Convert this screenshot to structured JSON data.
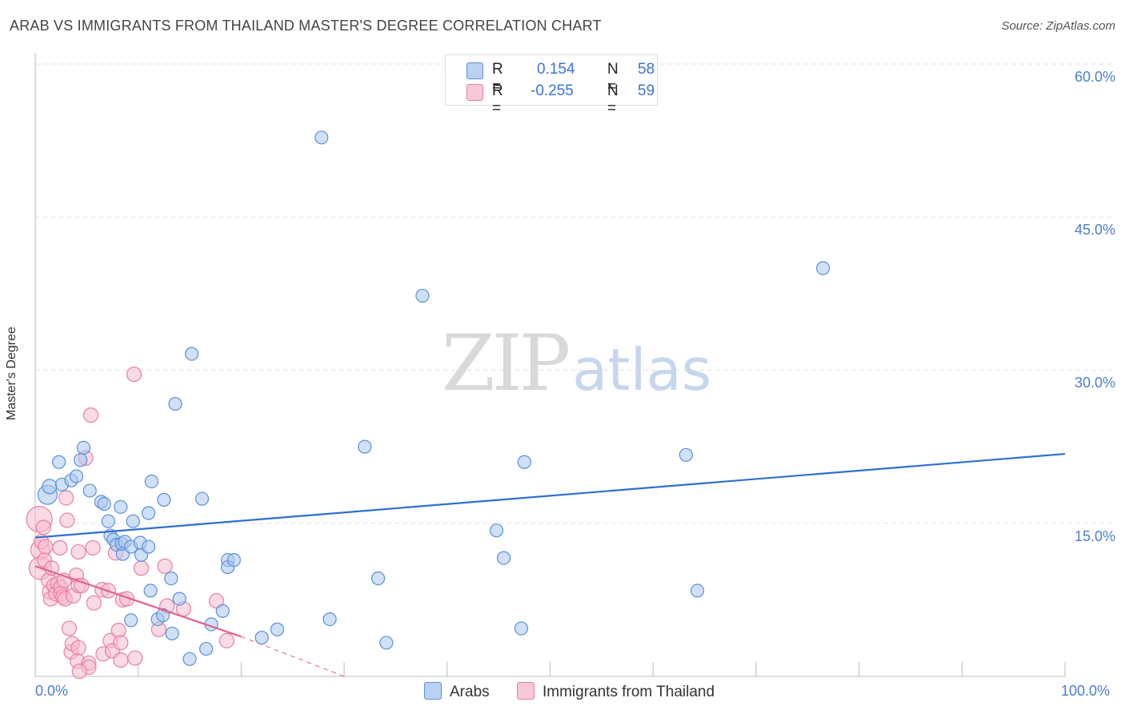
{
  "title": "ARAB VS IMMIGRANTS FROM THAILAND MASTER'S DEGREE CORRELATION CHART",
  "source": "Source: ZipAtlas.com",
  "watermark": {
    "zip": "ZIP",
    "atlas": "atlas"
  },
  "colors": {
    "blue": "#5b8fd9",
    "blue_fill": "#a9c6ee",
    "blue_line": "#2f6fd0",
    "pink": "#e87fa2",
    "pink_fill": "#f6bcd0",
    "pink_line": "#e0628f"
  },
  "legend": {
    "rows": [
      {
        "r_label": "R =",
        "r_value": "0.154",
        "n_label": "N =",
        "n_value": "58"
      },
      {
        "r_label": "R =",
        "r_value": "-0.255",
        "n_label": "N =",
        "n_value": "59"
      }
    ]
  },
  "bottom_legend": {
    "arabs": "Arabs",
    "thailand": "Immigrants from Thailand"
  },
  "chart_data": {
    "type": "scatter",
    "title": "ARAB VS IMMIGRANTS FROM THAILAND MASTER'S DEGREE CORRELATION CHART",
    "xlabel": "",
    "ylabel": "Master's Degree",
    "xlim": [
      0,
      100
    ],
    "ylim": [
      0,
      60
    ],
    "x_tick_labels": [
      "0.0%",
      "100.0%"
    ],
    "y_ticks": [
      15,
      30,
      45,
      60
    ],
    "y_tick_labels": [
      "15.0%",
      "30.0%",
      "45.0%",
      "60.0%"
    ],
    "grid": true,
    "series": [
      {
        "name": "Arabs",
        "r": 0.154,
        "n": 58,
        "trend": {
          "x0": 0,
          "y0": 13.6,
          "x1": 100,
          "y1": 21.8
        },
        "points": [
          [
            1.2,
            17.8,
            12
          ],
          [
            1.4,
            18.6,
            9
          ],
          [
            2.3,
            21.0,
            8
          ],
          [
            2.6,
            18.8,
            8
          ],
          [
            3.5,
            19.2,
            8
          ],
          [
            4.0,
            19.6,
            8
          ],
          [
            4.4,
            21.2,
            8
          ],
          [
            4.7,
            22.4,
            8
          ],
          [
            5.3,
            18.2,
            8
          ],
          [
            6.4,
            17.1,
            8
          ],
          [
            6.7,
            16.9,
            8
          ],
          [
            7.3,
            13.8,
            8
          ],
          [
            7.1,
            15.2,
            8
          ],
          [
            7.6,
            13.4,
            8
          ],
          [
            7.9,
            12.9,
            8
          ],
          [
            8.5,
            12.0,
            8
          ],
          [
            8.4,
            13.0,
            8
          ],
          [
            8.7,
            13.2,
            8
          ],
          [
            8.3,
            16.6,
            8
          ],
          [
            9.3,
            12.7,
            8
          ],
          [
            9.5,
            15.2,
            8
          ],
          [
            10.3,
            11.9,
            8
          ],
          [
            10.2,
            13.1,
            8
          ],
          [
            11.0,
            16.0,
            8
          ],
          [
            11.3,
            19.1,
            8
          ],
          [
            11.0,
            12.7,
            8
          ],
          [
            11.2,
            8.4,
            8
          ],
          [
            12.5,
            17.3,
            8
          ],
          [
            13.6,
            26.7,
            8
          ],
          [
            13.2,
            9.6,
            8
          ],
          [
            14.0,
            7.6,
            8
          ],
          [
            15.2,
            31.6,
            8
          ],
          [
            16.2,
            17.4,
            8
          ],
          [
            17.1,
            5.1,
            8
          ],
          [
            18.2,
            6.4,
            8
          ],
          [
            18.7,
            11.4,
            8
          ],
          [
            18.7,
            10.7,
            8
          ],
          [
            19.3,
            11.4,
            8
          ],
          [
            22.0,
            3.8,
            8
          ],
          [
            23.5,
            4.6,
            8
          ],
          [
            27.8,
            52.8,
            8
          ],
          [
            28.6,
            5.6,
            8
          ],
          [
            32.0,
            22.5,
            8
          ],
          [
            33.3,
            9.6,
            8
          ],
          [
            34.1,
            3.3,
            8
          ],
          [
            37.6,
            37.3,
            8
          ],
          [
            44.8,
            14.3,
            8
          ],
          [
            45.5,
            11.6,
            8
          ],
          [
            47.2,
            4.7,
            8
          ],
          [
            47.5,
            21.0,
            8
          ],
          [
            63.2,
            21.7,
            8
          ],
          [
            64.3,
            8.4,
            8
          ],
          [
            76.5,
            40.0,
            8
          ],
          [
            9.3,
            5.5,
            8
          ],
          [
            11.9,
            5.6,
            8
          ],
          [
            12.4,
            6.0,
            8
          ],
          [
            13.3,
            4.2,
            8
          ],
          [
            15.0,
            1.7,
            8
          ],
          [
            16.6,
            2.7,
            8
          ]
        ]
      },
      {
        "name": "Immigrants from Thailand",
        "r": -0.255,
        "n": 59,
        "trend": {
          "x0": 0,
          "y0": 10.8,
          "x1": 20,
          "y1": 3.9
        },
        "trend_dashed": {
          "x0": 20,
          "y0": 3.9,
          "x1": 30,
          "y1": 0.0
        },
        "points": [
          [
            0.4,
            15.4,
            16
          ],
          [
            0.5,
            12.4,
            12
          ],
          [
            0.5,
            10.6,
            14
          ],
          [
            0.6,
            13.2,
            9
          ],
          [
            0.8,
            14.6,
            9
          ],
          [
            0.9,
            11.4,
            9
          ],
          [
            1.0,
            12.7,
            9
          ],
          [
            1.3,
            9.4,
            9
          ],
          [
            1.4,
            8.3,
            9
          ],
          [
            1.5,
            7.6,
            9
          ],
          [
            1.6,
            10.6,
            9
          ],
          [
            1.8,
            8.9,
            9
          ],
          [
            2.0,
            8.1,
            9
          ],
          [
            2.2,
            9.1,
            9
          ],
          [
            2.4,
            12.6,
            9
          ],
          [
            2.5,
            8.7,
            9
          ],
          [
            2.5,
            8.1,
            9
          ],
          [
            2.7,
            7.8,
            9
          ],
          [
            2.8,
            9.4,
            9
          ],
          [
            2.9,
            7.6,
            9
          ],
          [
            3.0,
            17.5,
            9
          ],
          [
            3.1,
            15.3,
            9
          ],
          [
            3.3,
            4.7,
            9
          ],
          [
            3.5,
            2.4,
            9
          ],
          [
            3.6,
            3.2,
            9
          ],
          [
            3.7,
            7.9,
            9
          ],
          [
            4.0,
            9.9,
            9
          ],
          [
            4.2,
            8.9,
            9
          ],
          [
            4.2,
            2.8,
            9
          ],
          [
            4.1,
            1.5,
            9
          ],
          [
            4.2,
            12.2,
            9
          ],
          [
            4.5,
            8.9,
            9
          ],
          [
            4.9,
            21.4,
            9
          ],
          [
            5.2,
            1.3,
            9
          ],
          [
            5.2,
            0.9,
            9
          ],
          [
            5.4,
            25.6,
            9
          ],
          [
            5.6,
            12.6,
            9
          ],
          [
            5.7,
            7.2,
            9
          ],
          [
            6.6,
            2.2,
            9
          ],
          [
            6.5,
            8.5,
            9
          ],
          [
            7.1,
            8.4,
            9
          ],
          [
            7.3,
            3.5,
            9
          ],
          [
            7.5,
            2.5,
            9
          ],
          [
            7.8,
            12.1,
            9
          ],
          [
            8.1,
            4.5,
            9
          ],
          [
            8.3,
            3.3,
            9
          ],
          [
            8.5,
            7.5,
            9
          ],
          [
            8.3,
            1.6,
            9
          ],
          [
            8.9,
            7.6,
            9
          ],
          [
            9.7,
            1.8,
            9
          ],
          [
            9.6,
            29.6,
            9
          ],
          [
            10.3,
            10.6,
            9
          ],
          [
            12.0,
            4.6,
            9
          ],
          [
            12.6,
            10.8,
            9
          ],
          [
            12.8,
            6.9,
            9
          ],
          [
            14.4,
            6.6,
            9
          ],
          [
            17.6,
            7.4,
            9
          ],
          [
            18.6,
            3.5,
            9
          ],
          [
            4.3,
            0.5,
            9
          ]
        ]
      }
    ]
  }
}
